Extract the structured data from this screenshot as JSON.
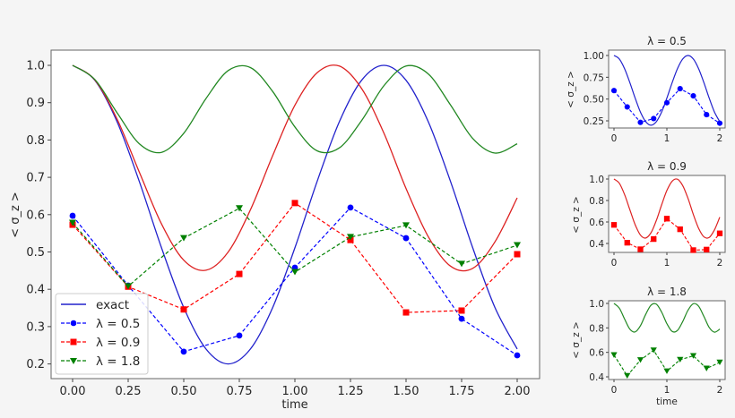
{
  "chart_data": [
    {
      "type": "line",
      "title": "",
      "xlabel": "time",
      "ylabel": "< σ_z >",
      "xlim": [
        -0.08,
        2.08
      ],
      "ylim": [
        0.16,
        1.04
      ],
      "xticks": [
        "0.00",
        "0.25",
        "0.50",
        "0.75",
        "1.00",
        "1.25",
        "1.50",
        "1.75",
        "2.00"
      ],
      "yticks": [
        "0.2",
        "0.3",
        "0.4",
        "0.5",
        "0.6",
        "0.7",
        "0.8",
        "0.9",
        "1.0"
      ],
      "grid": false,
      "legend_position": "lower left",
      "legend": [
        "exact",
        "λ = 0.5",
        "λ = 0.9",
        "λ = 1.8"
      ],
      "exact_t": [
        0,
        0.1,
        0.2,
        0.3,
        0.4,
        0.5,
        0.6,
        0.7,
        0.8,
        0.9,
        1.0,
        1.1,
        1.2,
        1.3,
        1.4,
        1.5,
        1.6,
        1.7,
        1.8,
        1.9,
        2.0
      ],
      "series": [
        {
          "name": "exact λ=0.5",
          "style": "solid",
          "color": "#2222cc",
          "values": [
            1.0,
            0.96,
            0.849,
            0.689,
            0.511,
            0.351,
            0.24,
            0.2,
            0.24,
            0.351,
            0.511,
            0.689,
            0.849,
            0.96,
            1.0,
            0.96,
            0.849,
            0.689,
            0.511,
            0.351,
            0.24
          ]
        },
        {
          "name": "exact λ=0.9",
          "style": "solid",
          "color": "#dd2222",
          "values": [
            1.0,
            0.961,
            0.856,
            0.714,
            0.575,
            0.478,
            0.451,
            0.5,
            0.613,
            0.758,
            0.893,
            0.98,
            0.998,
            0.938,
            0.819,
            0.67,
            0.541,
            0.462,
            0.456,
            0.527,
            0.645
          ]
        },
        {
          "name": "exact λ=1.8",
          "style": "solid",
          "color": "#228822",
          "values": [
            1.0,
            0.962,
            0.873,
            0.79,
            0.767,
            0.818,
            0.911,
            0.986,
            0.994,
            0.93,
            0.835,
            0.771,
            0.779,
            0.852,
            0.945,
            0.998,
            0.977,
            0.894,
            0.804,
            0.765,
            0.79
          ]
        }
      ],
      "sample_t": [
        0,
        0.25,
        0.5,
        0.75,
        1.0,
        1.25,
        1.5,
        1.75,
        2.0
      ],
      "samples": [
        {
          "name": "λ = 0.5",
          "marker": "circle",
          "color": "#0000ff",
          "values": [
            0.597,
            0.41,
            0.233,
            0.276,
            0.458,
            0.619,
            0.537,
            0.321,
            0.223
          ]
        },
        {
          "name": "λ = 0.9",
          "marker": "square",
          "color": "#ff0000",
          "values": [
            0.573,
            0.407,
            0.346,
            0.441,
            0.631,
            0.532,
            0.338,
            0.343,
            0.494
          ]
        },
        {
          "name": "λ = 1.8",
          "marker": "triangle-down",
          "color": "#008000",
          "values": [
            0.578,
            0.408,
            0.537,
            0.617,
            0.446,
            0.54,
            0.571,
            0.468,
            0.518
          ]
        }
      ]
    },
    {
      "type": "line",
      "title": "λ = 0.5",
      "xlabel": "",
      "ylabel": "< σ_z >",
      "xticks": [
        "0",
        "1",
        "2"
      ],
      "yticks": [
        "0.25",
        "0.50",
        "0.75",
        "1.00"
      ],
      "ylim": [
        0.16,
        1.04
      ]
    },
    {
      "type": "line",
      "title": "λ = 0.9",
      "xlabel": "",
      "ylabel": "< σ_z >",
      "xticks": [
        "0",
        "1",
        "2"
      ],
      "yticks": [
        "0.4",
        "0.6",
        "0.8",
        "1.0"
      ],
      "ylim": [
        0.31,
        1.03
      ]
    },
    {
      "type": "line",
      "title": "λ = 1.8",
      "xlabel": "time",
      "ylabel": "< σ_z >",
      "xticks": [
        "0",
        "1",
        "2"
      ],
      "yticks": [
        "0.4",
        "0.6",
        "0.8",
        "1.0"
      ],
      "ylim": [
        0.38,
        1.03
      ]
    }
  ],
  "main": {
    "xlabel": "time",
    "ylabel": "< σ_z >"
  },
  "legend": {
    "exact": "exact",
    "l05": "λ = 0.5",
    "l09": "λ = 0.9",
    "l18": "λ = 1.8"
  },
  "sub": [
    {
      "title": "λ = 0.5"
    },
    {
      "title": "λ = 0.9"
    },
    {
      "title": "λ = 1.8",
      "xlabel": "time"
    }
  ]
}
